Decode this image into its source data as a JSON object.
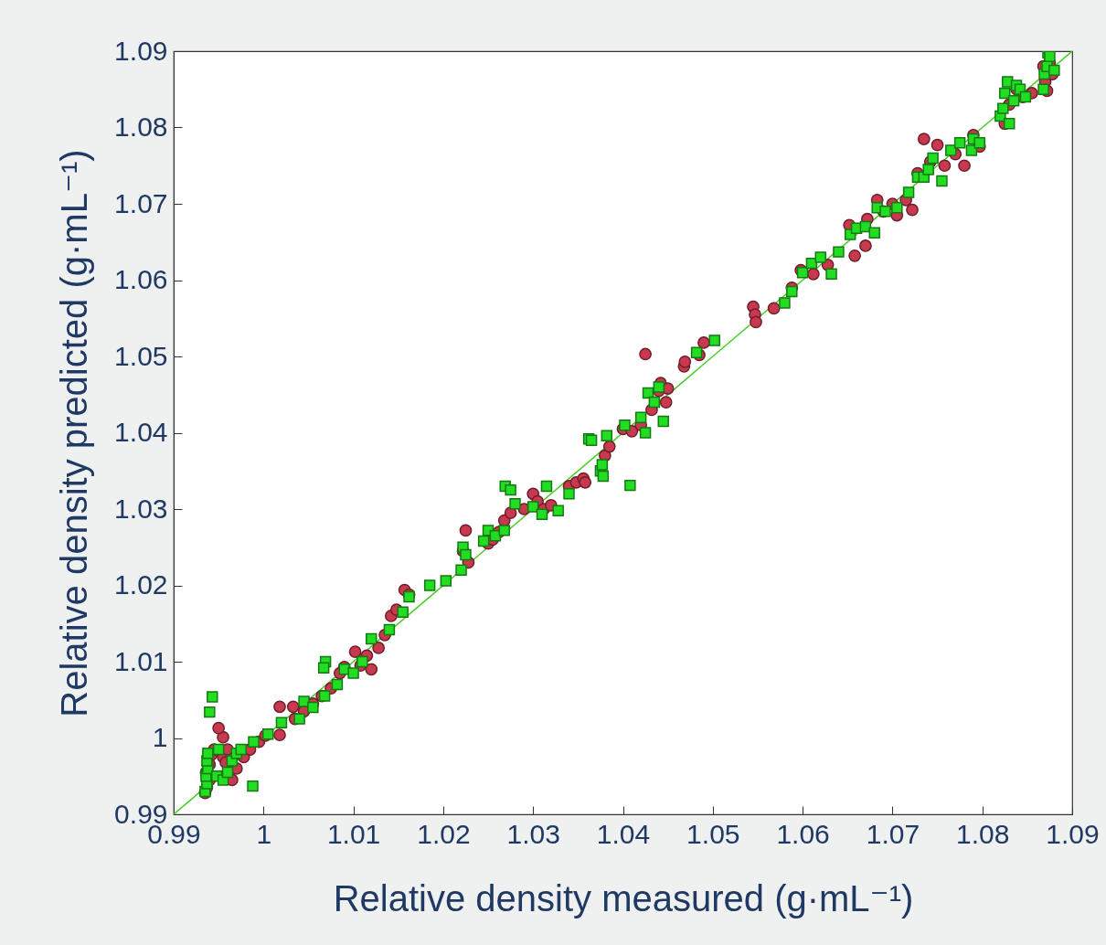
{
  "chart_data": {
    "type": "scatter",
    "xlabel": "Relative density measured (g·mL⁻¹)",
    "ylabel": "Relative density predicted (g·mL⁻¹)",
    "xlim": [
      0.99,
      1.09
    ],
    "ylim": [
      0.99,
      1.09
    ],
    "xticks": [
      0.99,
      1,
      1.01,
      1.02,
      1.03,
      1.04,
      1.05,
      1.06,
      1.07,
      1.08,
      1.09
    ],
    "yticks": [
      0.99,
      1,
      1.01,
      1.02,
      1.03,
      1.04,
      1.05,
      1.06,
      1.07,
      1.08,
      1.09
    ],
    "grid": false,
    "series": [
      {
        "type": "line",
        "color": "#44cc22",
        "x": [
          0.99,
          1.09
        ],
        "values": [
          0.99,
          1.09
        ],
        "line_style": "solid",
        "marker": "none"
      },
      {
        "marker": "circle",
        "color": "#c8384e",
        "x": [
          0.9935,
          0.9937,
          0.994,
          0.9936,
          0.994,
          0.9942,
          0.9945,
          0.9955,
          0.9958,
          0.996,
          0.9955,
          0.995,
          0.9965,
          0.997,
          0.9978,
          0.9985,
          0.9995,
          1.0002,
          1.0018,
          1.0018,
          1.0033,
          1.0035,
          1.0045,
          1.0055,
          1.0065,
          1.0075,
          1.0085,
          1.009,
          1.0102,
          1.0108,
          1.0115,
          1.012,
          1.0128,
          1.0135,
          1.0142,
          1.0148,
          1.0157,
          1.0162,
          1.0222,
          1.0225,
          1.0228,
          1.025,
          1.0255,
          1.0262,
          1.0268,
          1.0275,
          1.029,
          1.03,
          1.0305,
          1.0312,
          1.032,
          1.034,
          1.0348,
          1.0356,
          1.0358,
          1.038,
          1.0385,
          1.04,
          1.041,
          1.042,
          1.0425,
          1.0432,
          1.044,
          1.0442,
          1.0448,
          1.045,
          1.0468,
          1.0469,
          1.0485,
          1.049,
          1.0545,
          1.0547,
          1.0548,
          1.0568,
          1.0588,
          1.0598,
          1.0612,
          1.0628,
          1.0652,
          1.0658,
          1.067,
          1.0672,
          1.0683,
          1.069,
          1.07,
          1.0705,
          1.0715,
          1.0722,
          1.0728,
          1.0735,
          1.0742,
          1.075,
          1.0758,
          1.077,
          1.078,
          1.079,
          1.0797,
          1.0825,
          1.083,
          1.0838,
          1.0845,
          1.0855,
          1.0868,
          1.087,
          1.0872,
          1.0875,
          1.0878
        ],
        "values": [
          0.9928,
          0.9935,
          0.9945,
          0.9955,
          0.9965,
          0.9978,
          0.9985,
          0.9975,
          0.9968,
          0.9985,
          1.0001,
          1.0013,
          0.9945,
          0.996,
          0.9975,
          0.9985,
          0.9995,
          1.0003,
          1.0004,
          1.0041,
          1.0041,
          1.0025,
          1.0035,
          1.0045,
          1.0055,
          1.0065,
          1.0085,
          1.0093,
          1.0113,
          1.0095,
          1.0108,
          1.009,
          1.0118,
          1.0135,
          1.016,
          1.0168,
          1.0194,
          1.0188,
          1.0245,
          1.0272,
          1.023,
          1.0255,
          1.026,
          1.027,
          1.0285,
          1.0295,
          1.03,
          1.032,
          1.031,
          1.03,
          1.0305,
          1.033,
          1.0335,
          1.034,
          1.0335,
          1.037,
          1.0382,
          1.0405,
          1.0402,
          1.041,
          1.0503,
          1.043,
          1.0455,
          1.0465,
          1.044,
          1.0458,
          1.0487,
          1.0493,
          1.0502,
          1.0518,
          1.0565,
          1.0555,
          1.0545,
          1.0563,
          1.059,
          1.0613,
          1.0608,
          1.062,
          1.0672,
          1.0632,
          1.0645,
          1.068,
          1.0705,
          1.069,
          1.07,
          1.0685,
          1.0705,
          1.0692,
          1.074,
          1.0785,
          1.0755,
          1.0777,
          1.075,
          1.0765,
          1.075,
          1.079,
          1.0775,
          1.0805,
          1.083,
          1.085,
          1.084,
          1.0845,
          1.088,
          1.086,
          1.0848,
          1.0885,
          1.087
        ]
      },
      {
        "marker": "square",
        "color": "#22dd22",
        "x": [
          0.9935,
          0.9937,
          0.9936,
          0.9938,
          0.9937,
          0.9938,
          0.994,
          0.9943,
          0.9948,
          0.995,
          0.9955,
          0.996,
          0.9965,
          0.997,
          0.9975,
          0.9988,
          0.9989,
          1.0005,
          1.002,
          1.004,
          1.0045,
          1.0055,
          1.0068,
          1.0069,
          1.0067,
          1.0082,
          1.009,
          1.01,
          1.011,
          1.012,
          1.014,
          1.0155,
          1.0162,
          1.0185,
          1.0203,
          1.022,
          1.0222,
          1.0225,
          1.0245,
          1.025,
          1.0258,
          1.0268,
          1.0269,
          1.0275,
          1.028,
          1.03,
          1.031,
          1.0315,
          1.0328,
          1.034,
          1.0362,
          1.0365,
          1.0375,
          1.0377,
          1.0378,
          1.0382,
          1.0402,
          1.0408,
          1.042,
          1.0425,
          1.0428,
          1.0435,
          1.044,
          1.0445,
          1.0482,
          1.0502,
          1.058,
          1.0588,
          1.06,
          1.061,
          1.062,
          1.0632,
          1.064,
          1.0653,
          1.066,
          1.067,
          1.068,
          1.0683,
          1.0692,
          1.0705,
          1.0718,
          1.0728,
          1.0735,
          1.074,
          1.0745,
          1.0755,
          1.0765,
          1.0775,
          1.0788,
          1.079,
          1.0797,
          1.082,
          1.0823,
          1.0825,
          1.0828,
          1.083,
          1.0835,
          1.0838,
          1.0842,
          1.0848,
          1.0868,
          1.0869,
          1.0872,
          1.0873,
          1.0875,
          1.088
        ],
        "values": [
          0.993,
          0.994,
          0.995,
          0.996,
          0.997,
          0.998,
          1.0034,
          1.0054,
          0.995,
          0.9985,
          0.9945,
          0.9955,
          0.997,
          0.998,
          0.9985,
          0.9937,
          0.9995,
          1.0005,
          1.002,
          1.0025,
          1.0048,
          1.004,
          1.0055,
          1.01,
          1.0092,
          1.007,
          1.009,
          1.0085,
          1.01,
          1.013,
          1.0142,
          1.0165,
          1.0185,
          1.02,
          1.0206,
          1.022,
          1.025,
          1.024,
          1.0258,
          1.0272,
          1.0265,
          1.0272,
          1.033,
          1.0325,
          1.0307,
          1.0303,
          1.0293,
          1.033,
          1.0298,
          1.032,
          1.0392,
          1.039,
          1.035,
          1.0358,
          1.0343,
          1.0396,
          1.041,
          1.0331,
          1.042,
          1.04,
          1.0452,
          1.044,
          1.046,
          1.0415,
          1.0505,
          1.0521,
          1.057,
          1.0585,
          1.061,
          1.0622,
          1.063,
          1.0608,
          1.0637,
          1.066,
          1.0668,
          1.067,
          1.0662,
          1.0695,
          1.069,
          1.0695,
          1.0715,
          1.0735,
          1.0735,
          1.0745,
          1.076,
          1.073,
          1.077,
          1.078,
          1.077,
          1.0785,
          1.078,
          1.0815,
          1.0825,
          1.0845,
          1.086,
          1.0805,
          1.0835,
          1.0855,
          1.085,
          1.084,
          1.085,
          1.087,
          1.088,
          1.0898,
          1.0893,
          1.0875
        ]
      }
    ]
  }
}
